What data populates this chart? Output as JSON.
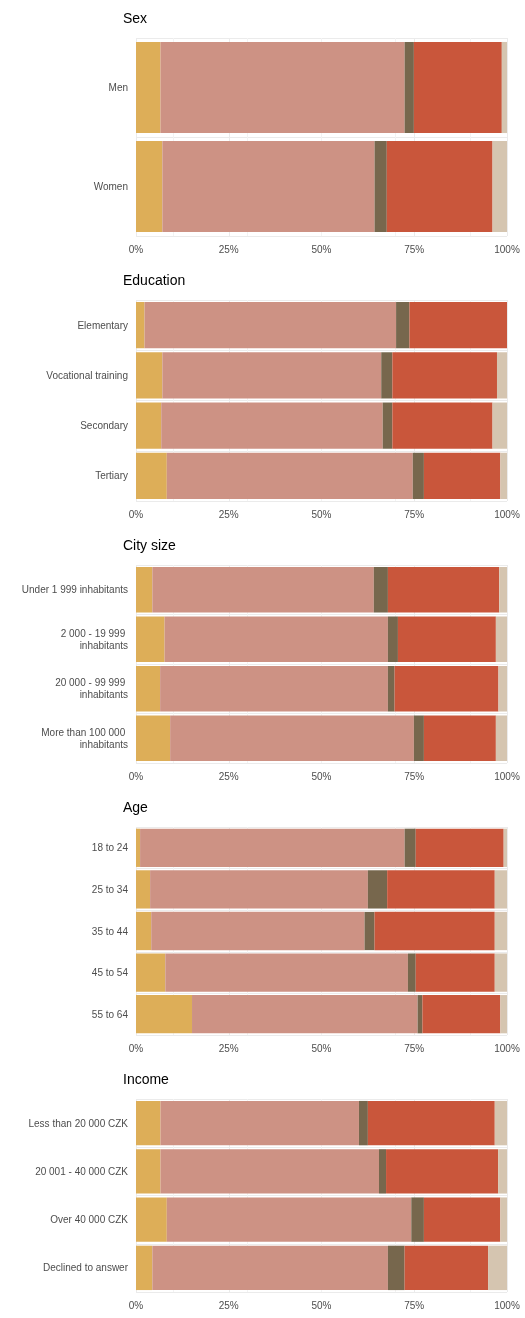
{
  "chart_data": [
    {
      "type": "bar",
      "title": "Sex",
      "orientation": "horizontal",
      "stacked": true,
      "grid": true,
      "categories": [
        "Men",
        "Women"
      ],
      "xlim": [
        0,
        100
      ],
      "xticks": [
        {
          "value": 0,
          "label": "0%"
        },
        {
          "value": 25,
          "label": "25%"
        },
        {
          "value": 50,
          "label": "50%"
        },
        {
          "value": 75,
          "label": "75%"
        },
        {
          "value": 100,
          "label": "100%"
        }
      ],
      "series": [
        {
          "color": "#ddae58",
          "values": [
            6.6,
            7.1
          ]
        },
        {
          "color": "#cd9284",
          "values": [
            65.8,
            57.2
          ]
        },
        {
          "color": "#77674d",
          "values": [
            2.5,
            3.3
          ]
        },
        {
          "color": "#c9563b",
          "values": [
            23.7,
            28.5
          ]
        },
        {
          "color": "#d5c5b0",
          "values": [
            1.4,
            3.9
          ]
        }
      ]
    },
    {
      "type": "bar",
      "title": "Education",
      "orientation": "horizontal",
      "stacked": true,
      "grid": true,
      "categories": [
        "Elementary",
        "Vocational training",
        "Secondary",
        "Tertiary"
      ],
      "xlim": [
        0,
        100
      ],
      "xticks": [
        {
          "value": 0,
          "label": "0%"
        },
        {
          "value": 25,
          "label": "25%"
        },
        {
          "value": 50,
          "label": "50%"
        },
        {
          "value": 75,
          "label": "75%"
        },
        {
          "value": 100,
          "label": "100%"
        }
      ],
      "series": [
        {
          "color": "#ddae58",
          "values": [
            2.3,
            7.1,
            6.8,
            8.3
          ]
        },
        {
          "color": "#cd9284",
          "values": [
            67.8,
            59.0,
            59.7,
            66.3
          ]
        },
        {
          "color": "#77674d",
          "values": [
            3.6,
            3.0,
            2.6,
            3.0
          ]
        },
        {
          "color": "#c9563b",
          "values": [
            26.3,
            28.2,
            27.0,
            20.6
          ]
        },
        {
          "color": "#d5c5b0",
          "values": [
            0,
            2.7,
            3.9,
            1.8
          ]
        }
      ]
    },
    {
      "type": "bar",
      "title": "City size",
      "orientation": "horizontal",
      "stacked": true,
      "grid": true,
      "categories": [
        "Under 1 999 inhabitants",
        "2 000 - 19 999 inhabitants",
        "20 000 - 99 999 inhabitants",
        "More than 100 000 inhabitants"
      ],
      "xlim": [
        0,
        100
      ],
      "xticks": [
        {
          "value": 0,
          "label": "0%"
        },
        {
          "value": 25,
          "label": "25%"
        },
        {
          "value": 50,
          "label": "50%"
        },
        {
          "value": 75,
          "label": "75%"
        },
        {
          "value": 100,
          "label": "100%"
        }
      ],
      "series": [
        {
          "color": "#ddae58",
          "values": [
            4.4,
            7.7,
            6.5,
            9.2
          ]
        },
        {
          "color": "#cd9284",
          "values": [
            59.7,
            60.2,
            61.4,
            65.7
          ]
        },
        {
          "color": "#77674d",
          "values": [
            3.8,
            2.7,
            1.8,
            2.7
          ]
        },
        {
          "color": "#c9563b",
          "values": [
            30.0,
            26.4,
            28.0,
            19.4
          ]
        },
        {
          "color": "#d5c5b0",
          "values": [
            2.1,
            3.0,
            2.3,
            3.0
          ]
        }
      ]
    },
    {
      "type": "bar",
      "title": "Age",
      "orientation": "horizontal",
      "stacked": true,
      "grid": true,
      "categories": [
        "18 to 24",
        "25 to 34",
        "35 to 44",
        "45 to 54",
        "55 to 64"
      ],
      "xlim": [
        0,
        100
      ],
      "xticks": [
        {
          "value": 0,
          "label": "0%"
        },
        {
          "value": 25,
          "label": "25%"
        },
        {
          "value": 50,
          "label": "50%"
        },
        {
          "value": 75,
          "label": "75%"
        },
        {
          "value": 100,
          "label": "100%"
        }
      ],
      "series": [
        {
          "color": "#ddae58",
          "values": [
            1.1,
            3.8,
            4.1,
            7.9,
            15.1
          ]
        },
        {
          "color": "#cd9284",
          "values": [
            71.3,
            58.7,
            57.5,
            65.4,
            60.8
          ]
        },
        {
          "color": "#77674d",
          "values": [
            3.0,
            5.2,
            2.7,
            2.1,
            1.3
          ]
        },
        {
          "color": "#c9563b",
          "values": [
            23.7,
            29.0,
            32.4,
            21.3,
            21.0
          ]
        },
        {
          "color": "#d5c5b0",
          "values": [
            0.9,
            3.3,
            3.3,
            3.3,
            1.8
          ]
        }
      ]
    },
    {
      "type": "bar",
      "title": "Income",
      "orientation": "horizontal",
      "stacked": true,
      "grid": true,
      "categories": [
        "Less than 20 000 CZK",
        "20 001 - 40 000 CZK",
        "Over 40 000 CZK",
        "Declined to answer"
      ],
      "xlim": [
        0,
        100
      ],
      "xticks": [
        {
          "value": 0,
          "label": "0%"
        },
        {
          "value": 25,
          "label": "25%"
        },
        {
          "value": 50,
          "label": "50%"
        },
        {
          "value": 75,
          "label": "75%"
        },
        {
          "value": 100,
          "label": "100%"
        }
      ],
      "series": [
        {
          "color": "#ddae58",
          "values": [
            6.6,
            6.6,
            8.3,
            4.4
          ]
        },
        {
          "color": "#cd9284",
          "values": [
            53.5,
            58.9,
            65.9,
            63.5
          ]
        },
        {
          "color": "#77674d",
          "values": [
            2.4,
            1.9,
            3.4,
            4.5
          ]
        },
        {
          "color": "#c9563b",
          "values": [
            34.2,
            30.2,
            20.6,
            22.5
          ]
        },
        {
          "color": "#d5c5b0",
          "values": [
            3.3,
            2.4,
            1.8,
            5.1
          ]
        }
      ]
    }
  ]
}
